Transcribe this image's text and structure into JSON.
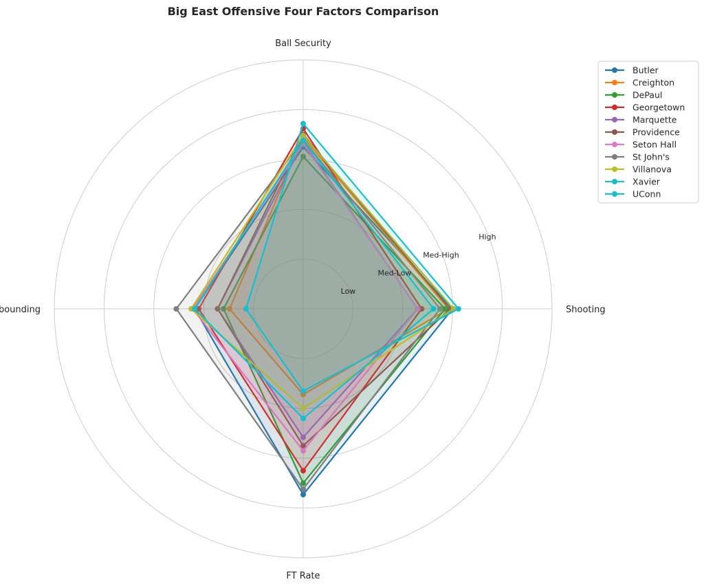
{
  "chart_data": {
    "type": "radar",
    "title": "Big East Offensive Four Factors Comparison",
    "axes": [
      "Ball Security",
      "Shooting",
      "FT Rate",
      "Off Rebounding"
    ],
    "scale": {
      "min": 0,
      "max": 5
    },
    "ring_levels": [
      1,
      2,
      3,
      4,
      5
    ],
    "ring_labels": [
      {
        "level": 1,
        "text": "Low"
      },
      {
        "level": 2,
        "text": "Med-Low"
      },
      {
        "level": 3,
        "text": "Med-High"
      },
      {
        "level": 4,
        "text": "High"
      }
    ],
    "grid": true,
    "legend_position": "top-right",
    "series": [
      {
        "name": "Butler",
        "color": "#1f77b4",
        "values": [
          3.25,
          3.0,
          3.73,
          2.18
        ]
      },
      {
        "name": "Creighton",
        "color": "#ff7f0e",
        "values": [
          3.45,
          2.92,
          1.72,
          1.48
        ]
      },
      {
        "name": "DePaul",
        "color": "#2ca02c",
        "values": [
          3.06,
          2.85,
          3.5,
          1.6
        ]
      },
      {
        "name": "Georgetown",
        "color": "#d62728",
        "values": [
          3.62,
          2.38,
          3.25,
          2.1
        ]
      },
      {
        "name": "Marquette",
        "color": "#9467bd",
        "values": [
          3.35,
          2.3,
          2.58,
          1.72
        ]
      },
      {
        "name": "Providence",
        "color": "#8c564b",
        "values": [
          3.5,
          2.95,
          2.75,
          1.72
        ]
      },
      {
        "name": "Seton Hall",
        "color": "#e377c2",
        "values": [
          3.32,
          2.3,
          2.85,
          2.22
        ]
      },
      {
        "name": "St John's",
        "color": "#7f7f7f",
        "values": [
          3.4,
          2.75,
          3.62,
          2.55
        ]
      },
      {
        "name": "Villanova",
        "color": "#bcbd22",
        "values": [
          3.48,
          3.02,
          2.0,
          2.25
        ]
      },
      {
        "name": "Xavier",
        "color": "#17becf",
        "values": [
          3.38,
          2.62,
          2.2,
          2.18
        ]
      },
      {
        "name": "UConn",
        "color": "#17becf",
        "values": [
          3.72,
          3.12,
          1.65,
          1.15
        ]
      }
    ]
  }
}
